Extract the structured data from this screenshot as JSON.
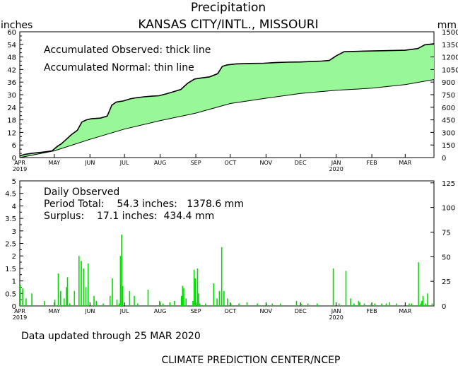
{
  "header": {
    "title": "Precipitation",
    "station": "KANSAS CITY/INTL., MISSOURI"
  },
  "units": {
    "left": "inches",
    "right": "mm"
  },
  "top_panel": {
    "legend_line1": "Accumulated Observed: thick line",
    "legend_line2": "Accumulated Normal: thin line"
  },
  "bottom_panel": {
    "title": "Daily Observed",
    "period_line": "Period Total:    54.3 inches:   1378.6 mm",
    "surplus_line": "Surplus:    17.1 inches:  434.4 mm"
  },
  "footer": {
    "updated": "Data updated through 25 MAR 2020",
    "credit": "CLIMATE PREDICTION CENTER/NCEP"
  },
  "colors": {
    "fill": "#98f898",
    "bar": "#00dd00",
    "line": "#000000"
  },
  "chart_data": [
    {
      "type": "area",
      "x_tick_labels": [
        "APR",
        "MAY",
        "JUN",
        "JUL",
        "AUG",
        "SEP",
        "OCT",
        "NOV",
        "DEC",
        "JAN",
        "FEB",
        "MAR"
      ],
      "x_year_labels": [
        {
          "at": "APR",
          "text": "2019"
        },
        {
          "at": "JAN",
          "text": "2020"
        }
      ],
      "x_tick_days": [
        0,
        30,
        61,
        91,
        122,
        153,
        183,
        214,
        244,
        275,
        306,
        335
      ],
      "days_total": 360,
      "y_ticks": [
        0,
        6,
        12,
        18,
        24,
        30,
        36,
        42,
        48,
        54,
        60
      ],
      "y2_ticks": [
        0,
        150,
        300,
        450,
        600,
        750,
        900,
        1050,
        1200,
        1350,
        1500
      ],
      "ylim": [
        0,
        60
      ],
      "y2lim": [
        0,
        1500
      ],
      "ylabel": "inches",
      "y2label": "mm",
      "series": [
        {
          "name": "Accumulated Observed",
          "points": [
            [
              0,
              0.8
            ],
            [
              4,
              1.5
            ],
            [
              10,
              2.0
            ],
            [
              20,
              2.6
            ],
            [
              28,
              3.2
            ],
            [
              33,
              5.5
            ],
            [
              36,
              6.5
            ],
            [
              40,
              8.5
            ],
            [
              45,
              11.0
            ],
            [
              50,
              13.0
            ],
            [
              54,
              17.0
            ],
            [
              58,
              18.0
            ],
            [
              62,
              18.5
            ],
            [
              70,
              18.8
            ],
            [
              76,
              19.8
            ],
            [
              80,
              25.0
            ],
            [
              84,
              26.5
            ],
            [
              90,
              27.0
            ],
            [
              96,
              28.0
            ],
            [
              101,
              28.5
            ],
            [
              108,
              29.0
            ],
            [
              115,
              29.3
            ],
            [
              121,
              29.5
            ],
            [
              128,
              30.5
            ],
            [
              134,
              31.5
            ],
            [
              140,
              32.5
            ],
            [
              146,
              35.5
            ],
            [
              152,
              37.5
            ],
            [
              158,
              38.0
            ],
            [
              165,
              38.5
            ],
            [
              172,
              40.0
            ],
            [
              176,
              43.5
            ],
            [
              180,
              44.2
            ],
            [
              188,
              44.7
            ],
            [
              200,
              44.9
            ],
            [
              212,
              45.0
            ],
            [
              222,
              45.3
            ],
            [
              232,
              45.5
            ],
            [
              244,
              45.6
            ],
            [
              253,
              45.8
            ],
            [
              262,
              46.0
            ],
            [
              269,
              46.3
            ],
            [
              275,
              48.5
            ],
            [
              282,
              50.5
            ],
            [
              300,
              50.8
            ],
            [
              318,
              51.0
            ],
            [
              335,
              51.2
            ],
            [
              346,
              52.0
            ],
            [
              352,
              53.8
            ],
            [
              360,
              54.3
            ]
          ]
        },
        {
          "name": "Accumulated Normal",
          "points": [
            [
              0,
              0
            ],
            [
              30,
              3.2
            ],
            [
              61,
              8.7
            ],
            [
              91,
              13.6
            ],
            [
              122,
              17.6
            ],
            [
              153,
              21.2
            ],
            [
              183,
              25.8
            ],
            [
              214,
              28.3
            ],
            [
              244,
              30.6
            ],
            [
              275,
              32.1
            ],
            [
              306,
              33.1
            ],
            [
              335,
              34.8
            ],
            [
              360,
              37.2
            ]
          ]
        }
      ]
    },
    {
      "type": "bar",
      "title": "Daily Observed",
      "x_tick_labels": [
        "APR",
        "MAY",
        "JUN",
        "JUL",
        "AUG",
        "SEP",
        "OCT",
        "NOV",
        "DEC",
        "JAN",
        "FEB",
        "MAR"
      ],
      "x_year_labels": [
        {
          "at": "APR",
          "text": "2019"
        },
        {
          "at": "JAN",
          "text": "2020"
        }
      ],
      "x_tick_days": [
        0,
        30,
        61,
        91,
        122,
        153,
        183,
        214,
        244,
        275,
        306,
        335
      ],
      "days_total": 360,
      "y_ticks": [
        0,
        0.5,
        1,
        1.5,
        2,
        2.5,
        3,
        3.5,
        4,
        4.5,
        5
      ],
      "y2_ticks": [
        0,
        25,
        50,
        75,
        100,
        125
      ],
      "ylim": [
        0,
        5
      ],
      "y2lim": [
        0,
        127
      ],
      "bars": [
        [
          0,
          0.85
        ],
        [
          2,
          0.7
        ],
        [
          5,
          0.3
        ],
        [
          10,
          0.5
        ],
        [
          21,
          0.2
        ],
        [
          30,
          0.25
        ],
        [
          33,
          1.3
        ],
        [
          35,
          0.6
        ],
        [
          38,
          0.3
        ],
        [
          40,
          0.75
        ],
        [
          41,
          1.15
        ],
        [
          43,
          0.1
        ],
        [
          47,
          0.6
        ],
        [
          51,
          2.0
        ],
        [
          53,
          1.8
        ],
        [
          55,
          1.5
        ],
        [
          57,
          0.75
        ],
        [
          59,
          1.7
        ],
        [
          64,
          0.4
        ],
        [
          66,
          0.2
        ],
        [
          72,
          0.1
        ],
        [
          78,
          0.4
        ],
        [
          80,
          1.1
        ],
        [
          84,
          0.25
        ],
        [
          86,
          0.1
        ],
        [
          87,
          2.0
        ],
        [
          88,
          2.85
        ],
        [
          89,
          0.8
        ],
        [
          95,
          0.6
        ],
        [
          99,
          0.4
        ],
        [
          102,
          0.1
        ],
        [
          111,
          0.65
        ],
        [
          121,
          0.2
        ],
        [
          124,
          0.1
        ],
        [
          130,
          0.15
        ],
        [
          134,
          0.2
        ],
        [
          140,
          0.4
        ],
        [
          141,
          0.8
        ],
        [
          142,
          0.7
        ],
        [
          144,
          0.3
        ],
        [
          150,
          0.2
        ],
        [
          151,
          1.45
        ],
        [
          152,
          1.1
        ],
        [
          154,
          1.5
        ],
        [
          155,
          0.5
        ],
        [
          156,
          0.1
        ],
        [
          161,
          0.1
        ],
        [
          168,
          0.9
        ],
        [
          171,
          0.3
        ],
        [
          173,
          0.6
        ],
        [
          175,
          2.35
        ],
        [
          177,
          0.6
        ],
        [
          180,
          0.3
        ],
        [
          183,
          0.1
        ],
        [
          190,
          0.1
        ],
        [
          197,
          0.15
        ],
        [
          206,
          0.1
        ],
        [
          214,
          0.1
        ],
        [
          219,
          0.1
        ],
        [
          226,
          0.1
        ],
        [
          240,
          0.2
        ],
        [
          244,
          0.1
        ],
        [
          250,
          0.1
        ],
        [
          258,
          0.1
        ],
        [
          272,
          1.5
        ],
        [
          277,
          0.1
        ],
        [
          283,
          1.4
        ],
        [
          287,
          0.3
        ],
        [
          290,
          0.1
        ],
        [
          294,
          0.2
        ],
        [
          295,
          0.15
        ],
        [
          299,
          0.1
        ],
        [
          305,
          0.1
        ],
        [
          308,
          0.1
        ],
        [
          314,
          0.1
        ],
        [
          318,
          0.1
        ],
        [
          321,
          0.15
        ],
        [
          327,
          0.1
        ],
        [
          338,
          0.1
        ],
        [
          340,
          0.1
        ],
        [
          346,
          1.75
        ],
        [
          348,
          0.1
        ],
        [
          349,
          0.2
        ],
        [
          350,
          0.4
        ],
        [
          352,
          0.1
        ],
        [
          354,
          0.5
        ],
        [
          358,
          0.1
        ]
      ]
    }
  ]
}
